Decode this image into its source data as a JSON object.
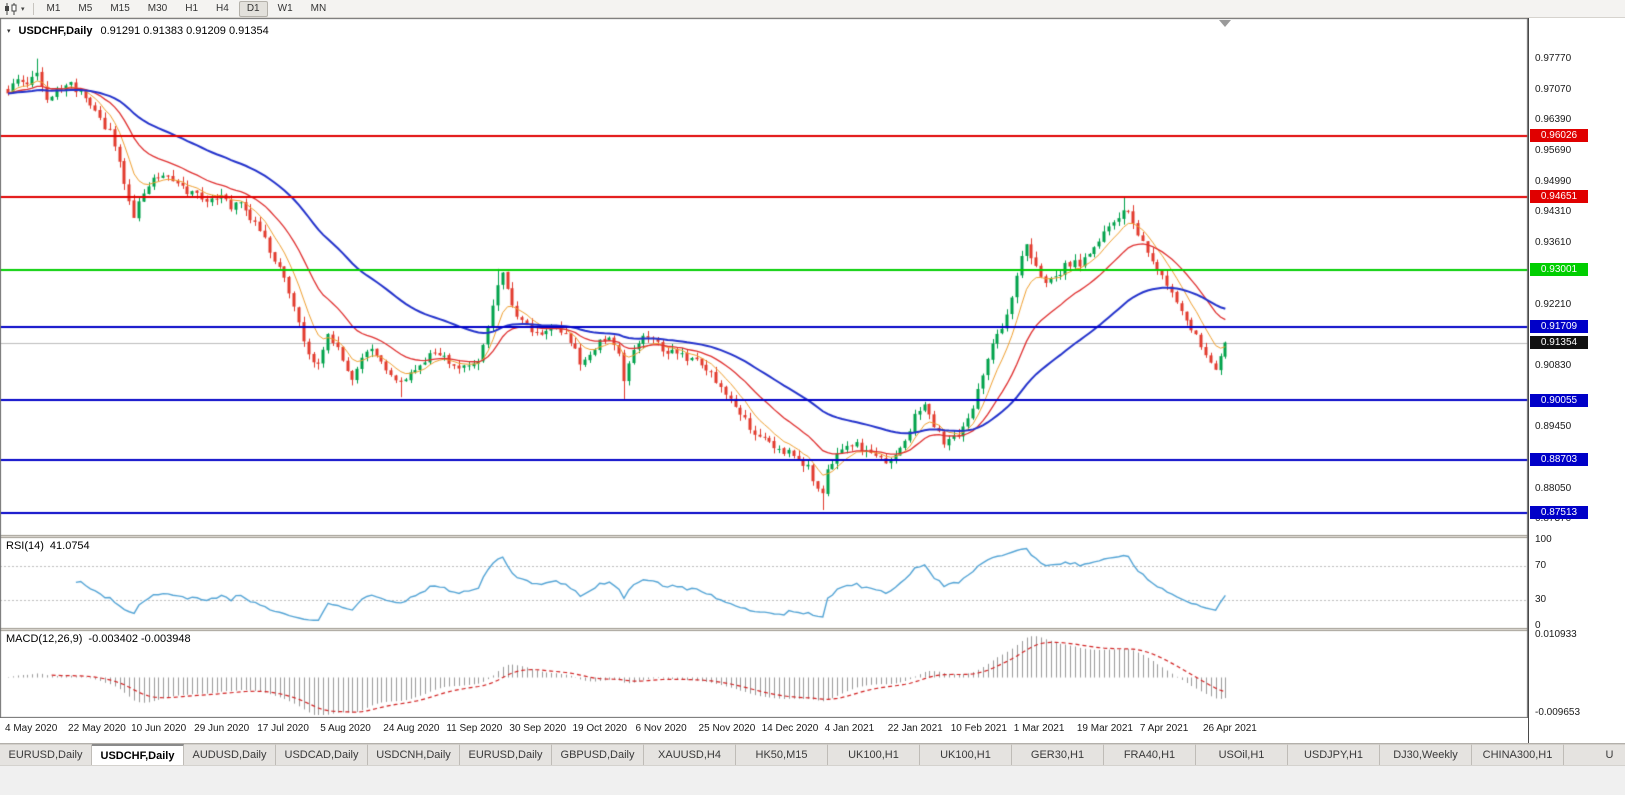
{
  "toolbar": {
    "chart_icon": "candlestick-chart-icon",
    "timeframes": [
      {
        "label": "M1",
        "active": false
      },
      {
        "label": "M5",
        "active": false
      },
      {
        "label": "M15",
        "active": false
      },
      {
        "label": "M30",
        "active": false
      },
      {
        "label": "H1",
        "active": false
      },
      {
        "label": "H4",
        "active": false
      },
      {
        "label": "D1",
        "active": true
      },
      {
        "label": "W1",
        "active": false
      },
      {
        "label": "MN",
        "active": false
      }
    ]
  },
  "chart": {
    "symbol": "USDCHF,Daily",
    "ohlc_text": "0.91291 0.91383 0.91209 0.91354",
    "current_price": "0.91354",
    "hlines": [
      {
        "value": 0.96026,
        "label": "0.96026",
        "color": "#e00000"
      },
      {
        "value": 0.94651,
        "label": "0.94651",
        "color": "#e00000"
      },
      {
        "value": 0.93001,
        "label": "0.93001",
        "color": "#00ce00"
      },
      {
        "value": 0.91709,
        "label": "0.91709",
        "color": "#0000c8"
      },
      {
        "value": 0.90055,
        "label": "0.90055",
        "color": "#0000c8"
      },
      {
        "value": 0.88703,
        "label": "0.88703",
        "color": "#0000c8"
      },
      {
        "value": 0.87513,
        "label": "0.87513",
        "color": "#0000c8"
      }
    ],
    "current_label_color": "#111111"
  },
  "chart_data": {
    "type": "candlestick",
    "symbol": "USDCHF",
    "timeframe": "Daily",
    "open": "0.91291",
    "high": "0.91383",
    "low": "0.91209",
    "close": "0.91354",
    "ylim": [
      0.8705,
      0.9853
    ],
    "bars": 252,
    "bars_per_x_label": 13,
    "y_ticks": [
      "0.97770",
      "0.97070",
      "0.96390",
      "0.95690",
      "0.94990",
      "0.94310",
      "0.93610",
      "0.92210",
      "0.90830",
      "0.89450",
      "0.88050",
      "0.87370"
    ],
    "x_labels": [
      "4 May 2020",
      "22 May 2020",
      "10 Jun 2020",
      "29 Jun 2020",
      "17 Jul 2020",
      "5 Aug 2020",
      "24 Aug 2020",
      "11 Sep 2020",
      "30 Sep 2020",
      "19 Oct 2020",
      "6 Nov 2020",
      "25 Nov 2020",
      "14 Dec 2020",
      "4 Jan 2021",
      "22 Jan 2021",
      "10 Feb 2021",
      "1 Mar 2021",
      "19 Mar 2021",
      "7 Apr 2021",
      "26 Apr 2021"
    ],
    "price_keypoints": [
      [
        0,
        0.97
      ],
      [
        2,
        0.9738
      ],
      [
        4,
        0.9712
      ],
      [
        6,
        0.9748
      ],
      [
        8,
        0.969
      ],
      [
        10,
        0.9705
      ],
      [
        13,
        0.9718
      ],
      [
        15,
        0.97
      ],
      [
        17,
        0.9668
      ],
      [
        19,
        0.964
      ],
      [
        21,
        0.961
      ],
      [
        23,
        0.9542
      ],
      [
        25,
        0.9448
      ],
      [
        26,
        0.9425
      ],
      [
        28,
        0.947
      ],
      [
        30,
        0.9505
      ],
      [
        32,
        0.9518
      ],
      [
        34,
        0.9495
      ],
      [
        36,
        0.9482
      ],
      [
        39,
        0.947
      ],
      [
        41,
        0.9452
      ],
      [
        44,
        0.9465
      ],
      [
        46,
        0.9442
      ],
      [
        48,
        0.9448
      ],
      [
        50,
        0.9415
      ],
      [
        52,
        0.9388
      ],
      [
        54,
        0.9345
      ],
      [
        56,
        0.93
      ],
      [
        58,
        0.9252
      ],
      [
        60,
        0.918
      ],
      [
        62,
        0.911
      ],
      [
        64,
        0.9085
      ],
      [
        66,
        0.9148
      ],
      [
        68,
        0.9125
      ],
      [
        70,
        0.9078
      ],
      [
        71,
        0.9058
      ],
      [
        73,
        0.9108
      ],
      [
        75,
        0.9128
      ],
      [
        77,
        0.9092
      ],
      [
        79,
        0.9062
      ],
      [
        81,
        0.9045
      ],
      [
        83,
        0.9068
      ],
      [
        85,
        0.9088
      ],
      [
        87,
        0.9105
      ],
      [
        89,
        0.9112
      ],
      [
        91,
        0.9085
      ],
      [
        93,
        0.9072
      ],
      [
        95,
        0.9082
      ],
      [
        97,
        0.9098
      ],
      [
        99,
        0.917
      ],
      [
        101,
        0.9262
      ],
      [
        102,
        0.929
      ],
      [
        104,
        0.9215
      ],
      [
        106,
        0.9188
      ],
      [
        108,
        0.9162
      ],
      [
        110,
        0.9158
      ],
      [
        112,
        0.9172
      ],
      [
        114,
        0.9165
      ],
      [
        116,
        0.9142
      ],
      [
        118,
        0.9092
      ],
      [
        120,
        0.9108
      ],
      [
        122,
        0.9135
      ],
      [
        124,
        0.9148
      ],
      [
        126,
        0.9105
      ],
      [
        127,
        0.9048
      ],
      [
        129,
        0.9118
      ],
      [
        131,
        0.9152
      ],
      [
        133,
        0.9138
      ],
      [
        135,
        0.9122
      ],
      [
        137,
        0.9112
      ],
      [
        139,
        0.9108
      ],
      [
        141,
        0.9095
      ],
      [
        143,
        0.9085
      ],
      [
        145,
        0.9062
      ],
      [
        147,
        0.9032
      ],
      [
        149,
        0.9005
      ],
      [
        151,
        0.8975
      ],
      [
        153,
        0.8945
      ],
      [
        155,
        0.8922
      ],
      [
        157,
        0.8908
      ],
      [
        159,
        0.8895
      ],
      [
        161,
        0.8888
      ],
      [
        163,
        0.8872
      ],
      [
        165,
        0.8852
      ],
      [
        167,
        0.8808
      ],
      [
        168,
        0.879
      ],
      [
        169,
        0.8842
      ],
      [
        171,
        0.8878
      ],
      [
        173,
        0.8898
      ],
      [
        175,
        0.8905
      ],
      [
        177,
        0.8888
      ],
      [
        179,
        0.8872
      ],
      [
        181,
        0.8868
      ],
      [
        183,
        0.8882
      ],
      [
        185,
        0.8912
      ],
      [
        187,
        0.8968
      ],
      [
        189,
        0.9002
      ],
      [
        191,
        0.8952
      ],
      [
        193,
        0.8905
      ],
      [
        195,
        0.8918
      ],
      [
        197,
        0.8942
      ],
      [
        199,
        0.8985
      ],
      [
        201,
        0.9068
      ],
      [
        203,
        0.9132
      ],
      [
        205,
        0.9168
      ],
      [
        207,
        0.9235
      ],
      [
        209,
        0.9328
      ],
      [
        210,
        0.9352
      ],
      [
        212,
        0.9302
      ],
      [
        214,
        0.9268
      ],
      [
        216,
        0.9282
      ],
      [
        218,
        0.9308
      ],
      [
        220,
        0.9322
      ],
      [
        221,
        0.9308
      ],
      [
        223,
        0.9342
      ],
      [
        225,
        0.9368
      ],
      [
        227,
        0.9392
      ],
      [
        229,
        0.9418
      ],
      [
        231,
        0.9438
      ],
      [
        232,
        0.9408
      ],
      [
        234,
        0.9362
      ],
      [
        236,
        0.9322
      ],
      [
        238,
        0.9285
      ],
      [
        240,
        0.9242
      ],
      [
        242,
        0.9205
      ],
      [
        244,
        0.9168
      ],
      [
        246,
        0.9128
      ],
      [
        248,
        0.9088
      ],
      [
        249,
        0.9072
      ],
      [
        250,
        0.9108
      ],
      [
        251,
        0.9135
      ]
    ],
    "wick_overrides": {
      "6": {
        "high": 0.9777
      },
      "81": {
        "low": 0.9012
      },
      "101": {
        "high": 0.9302
      },
      "127": {
        "low": 0.9008
      },
      "168": {
        "low": 0.8757
      },
      "230": {
        "high": 0.9465
      }
    },
    "up_color": "#00a24b",
    "down_color": "#e23b2e",
    "current_price_line_color": "#bdbdbd",
    "moving_averages": [
      {
        "name": "fast-ma",
        "period": 7,
        "color": "#f0a030",
        "width": 1
      },
      {
        "name": "mid-ma",
        "period": 18,
        "color": "#e03030",
        "width": 1.3
      },
      {
        "name": "slow-ma",
        "period": 45,
        "color": "#2433cc",
        "width": 2
      }
    ]
  },
  "rsi": {
    "label": "RSI(14)",
    "value": "41.0754",
    "period": 14,
    "levels": [
      "100",
      "70",
      "30",
      "0"
    ],
    "color": "#55a5d6",
    "level_line_color": "#bdbdbd"
  },
  "macd": {
    "label": "MACD(12,26,9)",
    "values": "-0.003402 -0.003948",
    "axis_max": "0.010933",
    "axis_min": "-0.009653",
    "histogram_color": "#9a9a9a",
    "signal_color": "#d22222"
  },
  "tabs": {
    "active_index": 1,
    "items": [
      "EURUSD,Daily",
      "USDCHF,Daily",
      "AUDUSD,Daily",
      "USDCAD,Daily",
      "USDCNH,Daily",
      "EURUSD,Daily",
      "GBPUSD,Daily",
      "XAUUSD,H4",
      "HK50,M15",
      "UK100,H1",
      "UK100,H1",
      "GER30,H1",
      "FRA40,H1",
      "USOil,H1",
      "USDJPY,H1",
      "DJ30,Weekly",
      "CHINA300,H1",
      "U"
    ]
  }
}
